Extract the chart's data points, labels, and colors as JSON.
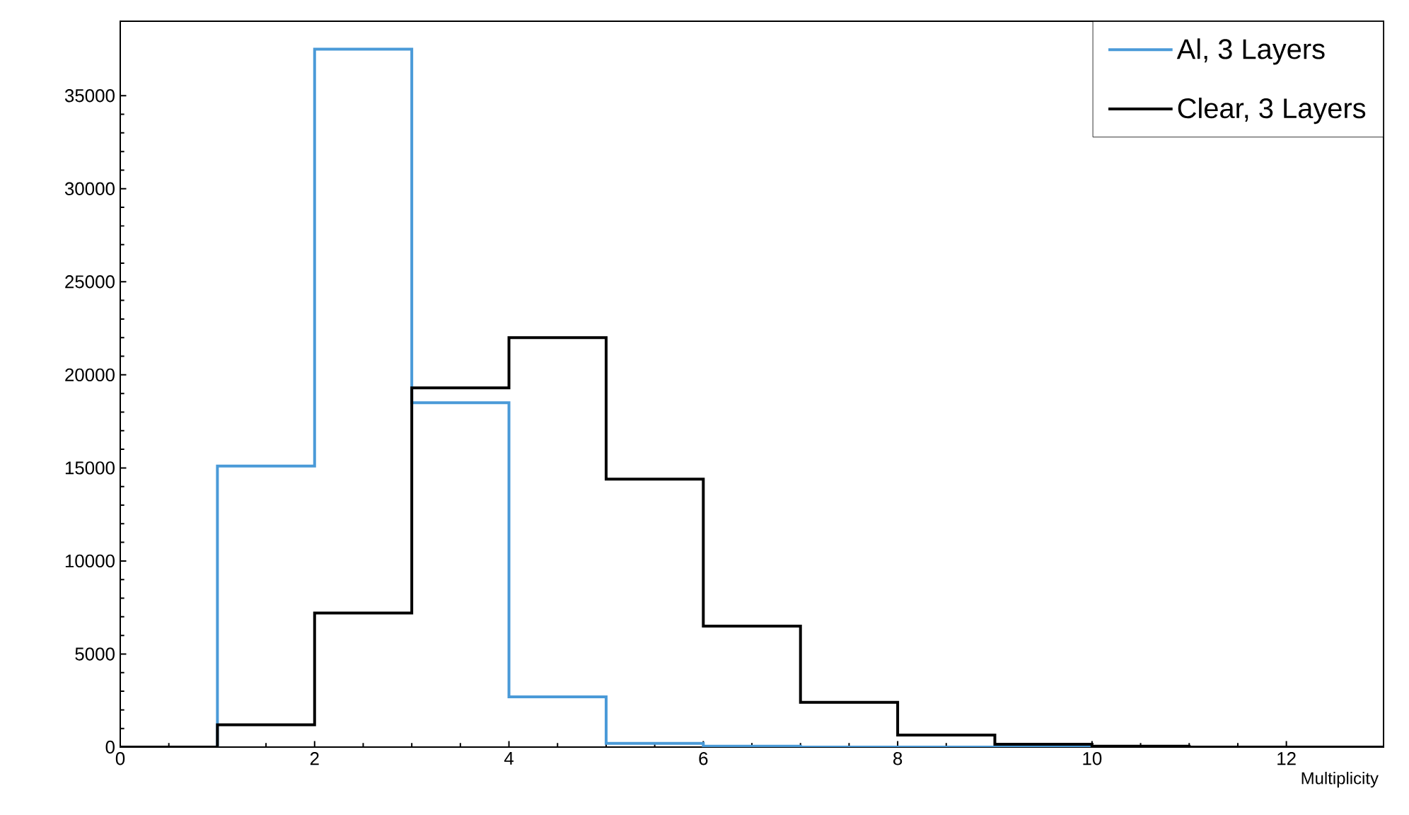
{
  "chart_data": {
    "type": "histogram",
    "xlabel": "Multiplicity",
    "bins": [
      0,
      1,
      2,
      3,
      4,
      5,
      6,
      7,
      8,
      9,
      10,
      11,
      12,
      13
    ],
    "series": [
      {
        "name": "Al, 3 Layers",
        "color": "#4a9ad8",
        "values": [
          0,
          15100,
          37500,
          18500,
          2700,
          200,
          50,
          0,
          0,
          0,
          0,
          0,
          0
        ]
      },
      {
        "name": "Clear, 3 Layers",
        "color": "#000000",
        "values": [
          0,
          1200,
          7200,
          19300,
          22000,
          14400,
          6500,
          2400,
          650,
          150,
          50,
          0,
          0
        ]
      }
    ],
    "xlim": [
      0,
      13
    ],
    "xticks": [
      0,
      2,
      4,
      6,
      8,
      10,
      12
    ],
    "ylim": [
      0,
      39000
    ],
    "yticks": [
      0,
      5000,
      10000,
      15000,
      20000,
      25000,
      30000,
      35000
    ],
    "grid": false,
    "legend": "top right"
  }
}
